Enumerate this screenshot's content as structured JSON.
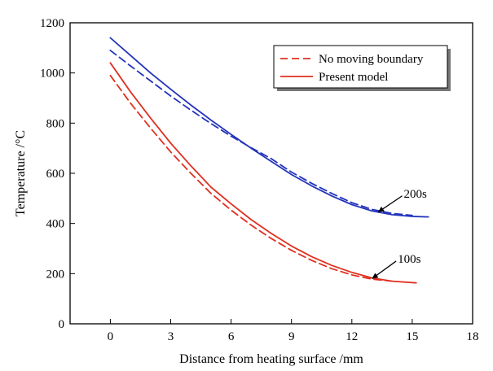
{
  "chart_data": {
    "type": "line",
    "xlabel": "Distance from heating surface /mm",
    "ylabel": "Temperature /°C",
    "xlim": [
      -2,
      18
    ],
    "ylim": [
      0,
      1200
    ],
    "xticks": [
      0,
      3,
      6,
      9,
      12,
      15,
      18
    ],
    "yticks": [
      0,
      200,
      400,
      600,
      800,
      1000,
      1200
    ],
    "grid": false,
    "legend": {
      "placement": "top-right",
      "entries": [
        {
          "label": "No moving boundary",
          "style": "dashed",
          "color": "#e03020"
        },
        {
          "label": "Present model",
          "style": "solid",
          "color": "#e03020"
        }
      ]
    },
    "series": [
      {
        "name": "No moving boundary",
        "time": "200s",
        "color": "#2233bb",
        "style": "dashed",
        "x": [
          0,
          1,
          2,
          3,
          4,
          5,
          6,
          7,
          8,
          9,
          10,
          11,
          12,
          13,
          14,
          15
        ],
        "y": [
          1090,
          1028,
          968,
          908,
          852,
          798,
          748,
          702,
          658,
          605,
          560,
          520,
          483,
          456,
          440,
          432
        ]
      },
      {
        "name": "Present model",
        "time": "200s",
        "color": "#2233bb",
        "style": "solid",
        "x": [
          0,
          1,
          2,
          3,
          4,
          5,
          6,
          7,
          8,
          9,
          10,
          11,
          12,
          13,
          14,
          15,
          15.8
        ],
        "y": [
          1140,
          1070,
          1000,
          935,
          872,
          812,
          755,
          700,
          647,
          595,
          550,
          510,
          475,
          450,
          435,
          428,
          426
        ]
      },
      {
        "name": "No moving boundary",
        "time": "100s",
        "color": "#e03020",
        "style": "dashed",
        "x": [
          0,
          1,
          2,
          3,
          4,
          5,
          6,
          7,
          8,
          9,
          10,
          11,
          12,
          13,
          14
        ],
        "y": [
          990,
          880,
          780,
          685,
          600,
          520,
          453,
          393,
          340,
          293,
          253,
          220,
          195,
          178,
          170
        ]
      },
      {
        "name": "Present model",
        "time": "100s",
        "color": "#e03020",
        "style": "solid",
        "x": [
          0,
          1,
          2,
          3,
          4,
          5,
          6,
          7,
          8,
          9,
          10,
          11,
          12,
          13,
          14,
          15.2
        ],
        "y": [
          1040,
          925,
          820,
          720,
          630,
          545,
          478,
          415,
          360,
          310,
          268,
          233,
          205,
          183,
          170,
          163
        ]
      }
    ],
    "annotations": [
      {
        "text": "200s",
        "x": 13.3,
        "y": 445,
        "text_x": 14.5,
        "text_y": 510
      },
      {
        "text": "100s",
        "x": 13.0,
        "y": 180,
        "text_x": 14.2,
        "text_y": 250
      }
    ]
  }
}
